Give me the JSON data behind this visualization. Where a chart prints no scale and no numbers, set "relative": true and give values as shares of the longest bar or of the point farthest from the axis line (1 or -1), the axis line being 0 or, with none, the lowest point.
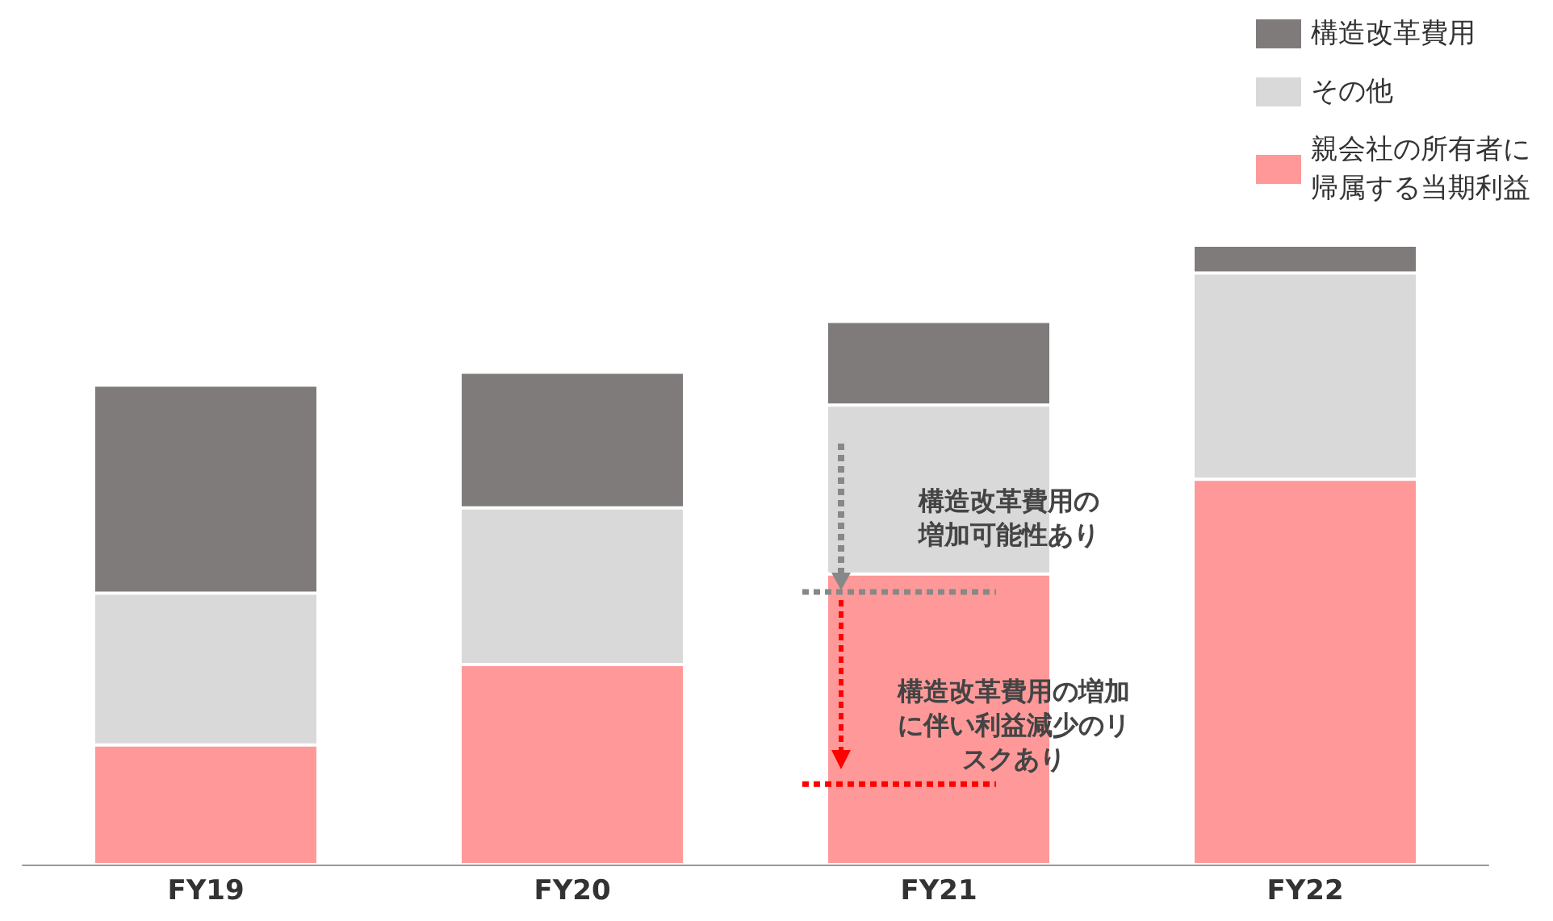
{
  "chart_data": {
    "type": "bar",
    "stacked": true,
    "relative": true,
    "legend": "top right",
    "categories": [
      "FY19",
      "FY20",
      "FY21",
      "FY22"
    ],
    "series": [
      {
        "name": "親会社の所有者に帰属する当期利益",
        "color": "#ff9999",
        "values": [
          0.193,
          0.323,
          0.469,
          0.622
        ]
      },
      {
        "name": "その他",
        "color": "#d9d9d9",
        "values": [
          0.245,
          0.253,
          0.273,
          0.333
        ]
      },
      {
        "name": "構造改革費用",
        "color": "#7f7b7a",
        "values": [
          0.336,
          0.219,
          0.135,
          0.045
        ]
      }
    ],
    "ref_lines": [
      {
        "axis": "y",
        "value": 0.44,
        "color": "#888888",
        "line_style": "dotted"
      },
      {
        "axis": "y",
        "value": 0.13,
        "color": "#ff0000",
        "line_style": "dotted"
      }
    ],
    "annotations": [
      "構造改革費用の増加可能性あり",
      "構造改革費用の増加に伴い利益減少のリスクあり"
    ]
  }
}
